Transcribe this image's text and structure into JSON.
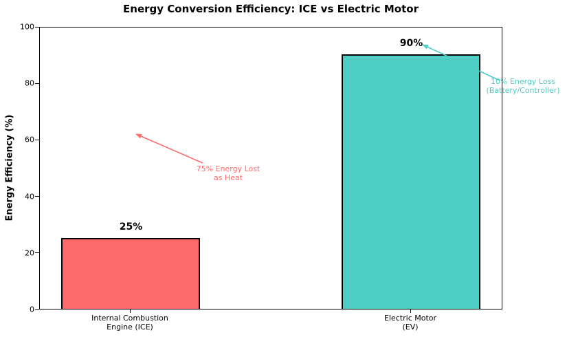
{
  "chart_data": {
    "type": "bar",
    "title": "Energy Conversion Efficiency: ICE vs Electric Motor",
    "ylabel": "Energy Efficiency (%)",
    "xlabel": "",
    "categories": [
      "Internal Combustion\nEngine (ICE)",
      "Electric Motor\n(EV)"
    ],
    "values": [
      25,
      90
    ],
    "bar_labels": [
      "25%",
      "90%"
    ],
    "bar_colors": [
      "#ff6b6b",
      "#4ecdc4"
    ],
    "bar_edge_color": "#000000",
    "yticks": [
      0,
      20,
      40,
      60,
      80,
      100
    ],
    "ylim": [
      0,
      100
    ],
    "grid": false,
    "legend": null,
    "annotations": [
      {
        "text": "75% Energy Lost\nas Heat",
        "color": "#ff6b6b"
      },
      {
        "text": "10% Energy Loss\n(Battery/Controller)",
        "color": "#4ecdc4"
      }
    ]
  }
}
